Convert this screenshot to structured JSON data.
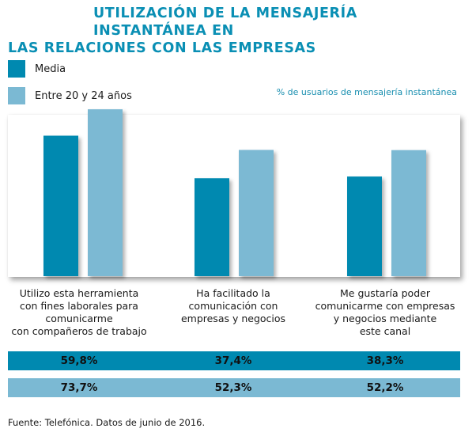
{
  "header": {
    "title_line1": "UTILIZACIÓN DE LA MENSAJERÍA INSTANTÁNEA EN",
    "title_line2": "LAS RELACIONES CON LAS EMPRESAS"
  },
  "colors": {
    "title": "#0a8fb4",
    "media": "#0089b0",
    "joven": "#7bb9d3",
    "units_text": "#1a8fb0"
  },
  "legend": [
    {
      "label": "Media",
      "color": "#0089b0"
    },
    {
      "label": "Entre 20 y 24 años",
      "color": "#7bb9d3"
    }
  ],
  "units_note": "% de usuarios de mensajería instantánea",
  "source": "Fuente: Telefónica. Datos de junio de 2016.",
  "table": {
    "rows": [
      {
        "series": "Media",
        "values": [
          "59,8%",
          "37,4%",
          "38,3%"
        ]
      },
      {
        "series": "Entre 20 y 24 años",
        "values": [
          "73,7%",
          "52,3%",
          "52,2%"
        ]
      }
    ]
  },
  "chart_data": {
    "type": "bar",
    "title": "UTILIZACIÓN DE LA MENSAJERÍA INSTANTÁNEA EN LAS RELACIONES CON LAS EMPRESAS",
    "subtitle": "% de usuarios de mensajería instantánea",
    "xlabel": "",
    "ylabel": "% de usuarios de mensajería instantánea",
    "grid": false,
    "legend_position": "top-left",
    "categories": [
      "Utilizo esta herramienta\ncon fines laborales para\ncomunicarme\ncon compañeros de trabajo",
      "Ha facilitado la\ncomunicación con\nempresas y negocios",
      "Me gustaría poder\ncomunicarme con empresas\ny negocios mediante\neste canal"
    ],
    "series": [
      {
        "name": "Media",
        "values": [
          59.8,
          37.4,
          38.3
        ]
      },
      {
        "name": "Entre 20 y 24 años",
        "values": [
          73.7,
          52.3,
          52.2
        ]
      }
    ]
  }
}
